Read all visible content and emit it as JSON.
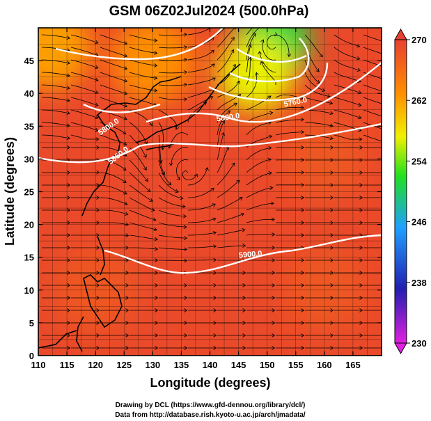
{
  "chart_data": {
    "type": "heatmap",
    "title": "GSM 06Z02Jul2024 (500.0hPa)",
    "xlabel": "Longitude (degrees)",
    "ylabel": "Latitude  (degrees)",
    "xlim": [
      110,
      170
    ],
    "ylim": [
      0,
      50
    ],
    "x_ticks": [
      "110",
      "115",
      "120",
      "125",
      "130",
      "135",
      "140",
      "145",
      "150",
      "155",
      "160",
      "165"
    ],
    "y_ticks": [
      "0",
      "5",
      "10",
      "15",
      "20",
      "25",
      "30",
      "35",
      "40",
      "45"
    ],
    "colorbar": {
      "range": [
        230,
        270
      ],
      "ticks": [
        "230",
        "238",
        "246",
        "254",
        "262",
        "270"
      ],
      "stops": [
        "#e020e0",
        "#2020b0",
        "#20a0ff",
        "#20e020",
        "#f0f000",
        "#ff9000",
        "#e84030"
      ]
    },
    "temperature_field": [
      {
        "lon": 112,
        "lat": 47,
        "value": 262
      },
      {
        "lon": 130,
        "lat": 45,
        "value": 263
      },
      {
        "lon": 151,
        "lat": 48,
        "value": 251
      },
      {
        "lon": 148,
        "lat": 43,
        "value": 257
      },
      {
        "lon": 135,
        "lat": 27,
        "value": 269
      },
      {
        "lon": 120,
        "lat": 10,
        "value": 268
      },
      {
        "lon": 160,
        "lat": 10,
        "value": 268
      },
      {
        "lon": 160,
        "lat": 30,
        "value": 268
      }
    ],
    "contour_labels": [
      "5760.0",
      "5800.0",
      "5800.0",
      "5860.0",
      "5900.0"
    ],
    "grid": true,
    "overlays": [
      "coastlines",
      "wind streamlines",
      "geopotential height contours"
    ]
  },
  "credits": {
    "line1": "Drawing by DCL (https://www.gfd-dennou.org/library/dcl/)",
    "line2": "Data from http://database.rish.kyoto-u.ac.jp/arch/jmadata/"
  }
}
